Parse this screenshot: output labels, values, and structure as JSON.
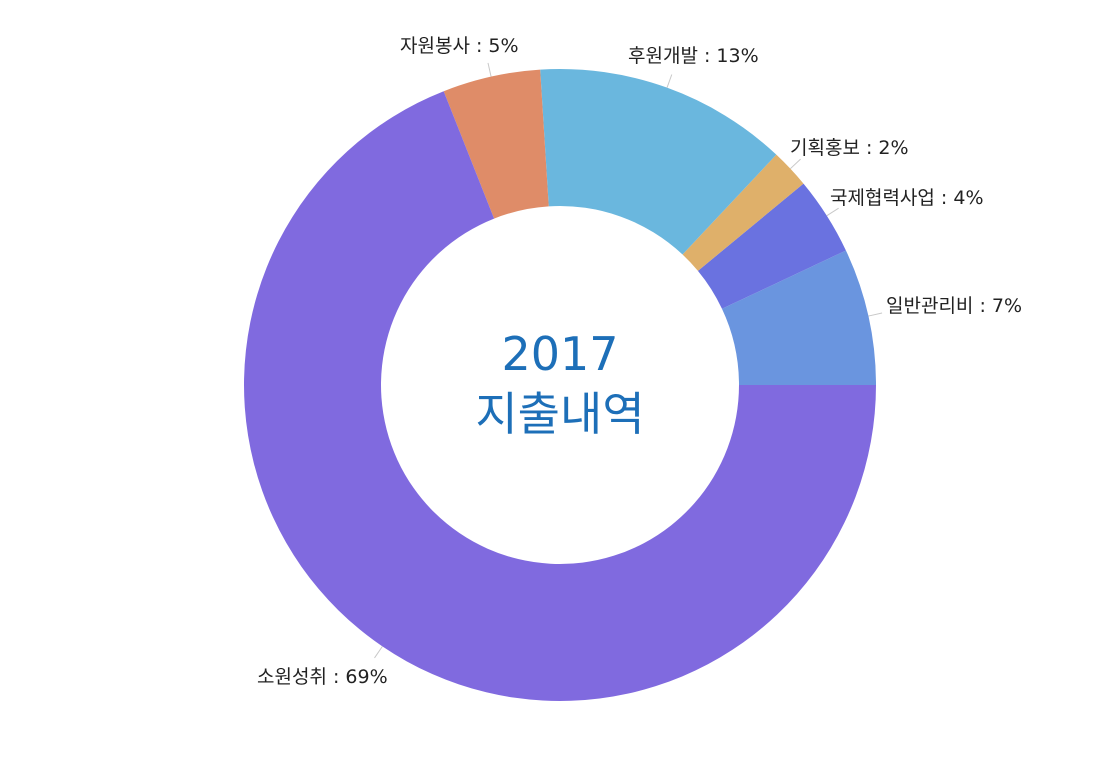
{
  "chart_data": {
    "type": "donut",
    "center_title": [
      "2017",
      "지출내역"
    ],
    "slices": [
      {
        "name": "일반관리비",
        "value": 7,
        "label": "일반관리비 : 7%",
        "color": "#6a95df"
      },
      {
        "name": "국제협력사업",
        "value": 4,
        "label": "국제협력사업 : 4%",
        "color": "#6a72e0"
      },
      {
        "name": "기획홍보",
        "value": 2,
        "label": "기획홍보 : 2%",
        "color": "#dfb06a"
      },
      {
        "name": "후원개발",
        "value": 13,
        "label": "후원개발 : 13%",
        "color": "#6ab7de"
      },
      {
        "name": "자원봉사",
        "value": 5,
        "label": "자원봉사 : 5%",
        "color": "#df8c68"
      },
      {
        "name": "소원성취",
        "value": 69,
        "label": "소원성취 : 69%",
        "color": "#806adf"
      }
    ]
  }
}
